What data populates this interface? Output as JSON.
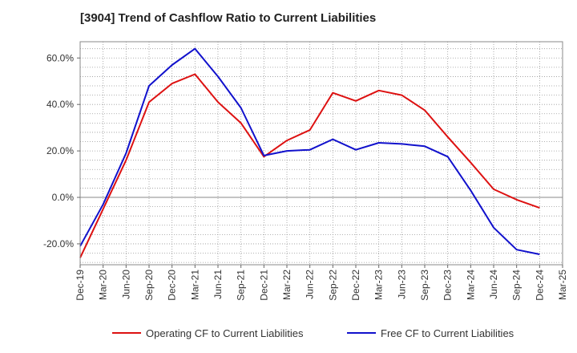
{
  "chart_data": {
    "type": "line",
    "title": "[3904]  Trend of Cashflow Ratio to Current Liabilities",
    "xlabel": "",
    "ylabel": "",
    "x": [
      "Dec-19",
      "Mar-20",
      "Jun-20",
      "Sep-20",
      "Dec-20",
      "Mar-21",
      "Jun-21",
      "Sep-21",
      "Dec-21",
      "Mar-22",
      "Jun-22",
      "Sep-22",
      "Dec-22",
      "Mar-23",
      "Jun-23",
      "Sep-23",
      "Dec-23",
      "Mar-24",
      "Jun-24",
      "Sep-24",
      "Dec-24",
      "Mar-25"
    ],
    "x_tick_labels": [
      "Dec-19",
      "Mar-20",
      "Jun-20",
      "Sep-20",
      "Dec-20",
      "Mar-21",
      "Jun-21",
      "Sep-21",
      "Dec-21",
      "Mar-22",
      "Jun-22",
      "Sep-22",
      "Dec-22",
      "Mar-23",
      "Jun-23",
      "Sep-23",
      "Dec-23",
      "Mar-24",
      "Jun-24",
      "Sep-24",
      "Dec-24",
      "Mar-25"
    ],
    "y_ticks": [
      -20,
      0,
      20,
      40,
      60
    ],
    "y_tick_labels": [
      "-20.0%",
      "0.0%",
      "20.0%",
      "40.0%",
      "60.0%"
    ],
    "ylim": [
      -29,
      67
    ],
    "grid": true,
    "legend_position": "bottom",
    "series": [
      {
        "name": "Operating CF to Current Liabilities",
        "color": "#dd1111",
        "values": [
          -26,
          -5,
          16,
          41,
          49,
          53,
          41,
          32,
          17.5,
          24.5,
          29,
          45,
          41.5,
          46,
          44,
          37.5,
          26,
          15,
          3.5,
          -1,
          -4.5,
          null
        ]
      },
      {
        "name": "Free CF to Current Liabilities",
        "color": "#1111cc",
        "values": [
          -21,
          -3,
          19,
          48,
          57,
          64,
          52,
          38.5,
          18,
          20,
          20.5,
          25,
          20.5,
          23.5,
          23,
          22,
          17.5,
          3,
          -13,
          -22.5,
          -24.5,
          null
        ]
      }
    ]
  }
}
